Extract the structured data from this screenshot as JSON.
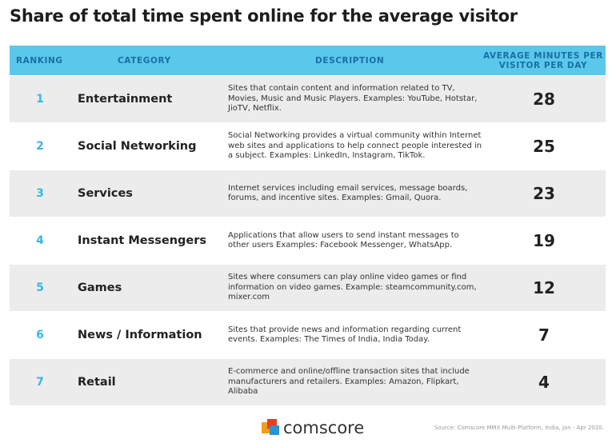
{
  "title": "Share of total time spent online for the average visitor",
  "table": {
    "columns": [
      "RANKING",
      "CATEGORY",
      "DESCRIPTION",
      "AVERAGE MINUTES PER VISITOR PER DAY"
    ],
    "rows": [
      [
        1,
        "Entertainment",
        "Sites that contain content and information related to TV, Movies, Music and Music Players. Examples: YouTube, Hotstar, JioTV, Netflix.",
        28
      ],
      [
        2,
        "Social Networking",
        "Social Networking provides a virtual community within Internet web sites and applications to help connect people interested in a subject. Examples: LinkedIn, Instagram, TikTok.",
        25
      ],
      [
        3,
        "Services",
        "Internet services including email services, message boards, forums, and incentive sites. Examples: Gmail, Quora.",
        23
      ],
      [
        4,
        "Instant Messengers",
        "Applications that allow users to send instant messages to other users Examples: Facebook Messenger, WhatsApp.",
        19
      ],
      [
        5,
        "Games",
        "Sites where consumers can play online video games or find information on video games. Example: steamcommunity.com, mixer.com",
        12
      ],
      [
        6,
        "News / Information",
        "Sites that provide news and information regarding current events. Examples: The Times of India, India Today.",
        7
      ],
      [
        7,
        "Retail",
        "E-commerce and online/offline transaction sites that include manufacturers and retailers. Examples: Amazon, Flipkart, Alibaba",
        4
      ]
    ]
  },
  "footer": {
    "brand": "comscore",
    "source": "Source: Comscore MMX Multi-Platform, India, Jan - Apr 2020."
  }
}
